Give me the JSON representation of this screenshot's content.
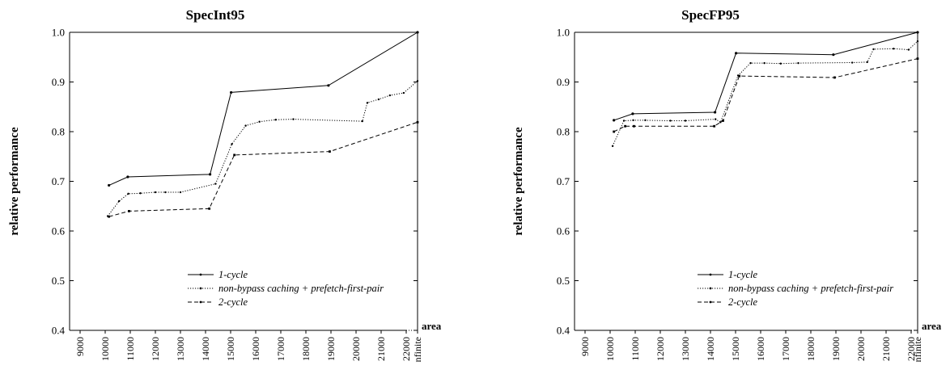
{
  "chart_data": [
    {
      "type": "line",
      "title": "SpecInt95",
      "xlabel": "area",
      "ylabel": "relative performance",
      "ylim": [
        0.4,
        1.0
      ],
      "yticks": [
        "0.4",
        "0.5",
        "0.6",
        "0.7",
        "0.8",
        "0.9",
        "1.0"
      ],
      "xticks": [
        "9000",
        "10000",
        "11000",
        "12000",
        "13000",
        "14000",
        "15000",
        "16000",
        "17000",
        "18000",
        "19000",
        "20000",
        "21000",
        "22000",
        "nfinite"
      ],
      "legend_position": "bottom-right",
      "series": [
        {
          "name": "1-cycle",
          "style": "solid",
          "x": [
            10150,
            10900,
            14180,
            15020,
            18900,
            "infinite"
          ],
          "y": [
            0.692,
            0.709,
            0.714,
            0.879,
            0.893,
            1.0
          ]
        },
        {
          "name": "non-bypass caching + prefetch-first-pair",
          "style": "dotted",
          "x": [
            10100,
            10550,
            10920,
            11400,
            12000,
            12400,
            13000,
            14400,
            15050,
            15600,
            16150,
            16800,
            17500,
            20250,
            20450,
            20900,
            21350,
            21900,
            "infinite"
          ],
          "y": [
            0.63,
            0.66,
            0.675,
            0.676,
            0.678,
            0.678,
            0.678,
            0.695,
            0.775,
            0.812,
            0.82,
            0.824,
            0.825,
            0.821,
            0.858,
            0.865,
            0.873,
            0.878,
            0.902
          ]
        },
        {
          "name": "2-cycle",
          "style": "dashed",
          "x": [
            10150,
            10950,
            14150,
            15150,
            18950,
            "infinite"
          ],
          "y": [
            0.629,
            0.64,
            0.645,
            0.753,
            0.76,
            0.819
          ]
        }
      ]
    },
    {
      "type": "line",
      "title": "SpecFP95",
      "xlabel": "area",
      "ylabel": "relative performance",
      "ylim": [
        0.4,
        1.0
      ],
      "yticks": [
        "0.4",
        "0.5",
        "0.6",
        "0.7",
        "0.8",
        "0.9",
        "1.0"
      ],
      "xticks": [
        "9000",
        "10000",
        "11000",
        "12000",
        "13000",
        "14000",
        "15000",
        "16000",
        "17000",
        "18000",
        "19000",
        "20000",
        "21000",
        "22000",
        "nfinite"
      ],
      "legend_position": "bottom-right",
      "series": [
        {
          "name": "1-cycle",
          "style": "solid",
          "x": [
            10150,
            10900,
            14180,
            15020,
            18900,
            "infinite"
          ],
          "y": [
            0.823,
            0.836,
            0.839,
            0.958,
            0.955,
            1.0
          ]
        },
        {
          "name": "non-bypass caching + prefetch-first-pair",
          "style": "dotted",
          "x": [
            10100,
            10550,
            10920,
            11400,
            12400,
            13000,
            14200,
            14400,
            15100,
            15600,
            16150,
            16800,
            17500,
            19650,
            20250,
            20500,
            21300,
            21900,
            "infinite"
          ],
          "y": [
            0.771,
            0.822,
            0.823,
            0.823,
            0.822,
            0.822,
            0.825,
            0.819,
            0.913,
            0.938,
            0.938,
            0.937,
            0.938,
            0.939,
            0.94,
            0.966,
            0.967,
            0.965,
            0.982
          ]
        },
        {
          "name": "2-cycle",
          "style": "dashed",
          "x": [
            10150,
            10600,
            10950,
            14150,
            14500,
            15150,
            18950,
            "infinite"
          ],
          "y": [
            0.8,
            0.811,
            0.811,
            0.811,
            0.822,
            0.912,
            0.909,
            0.947
          ]
        }
      ]
    }
  ]
}
